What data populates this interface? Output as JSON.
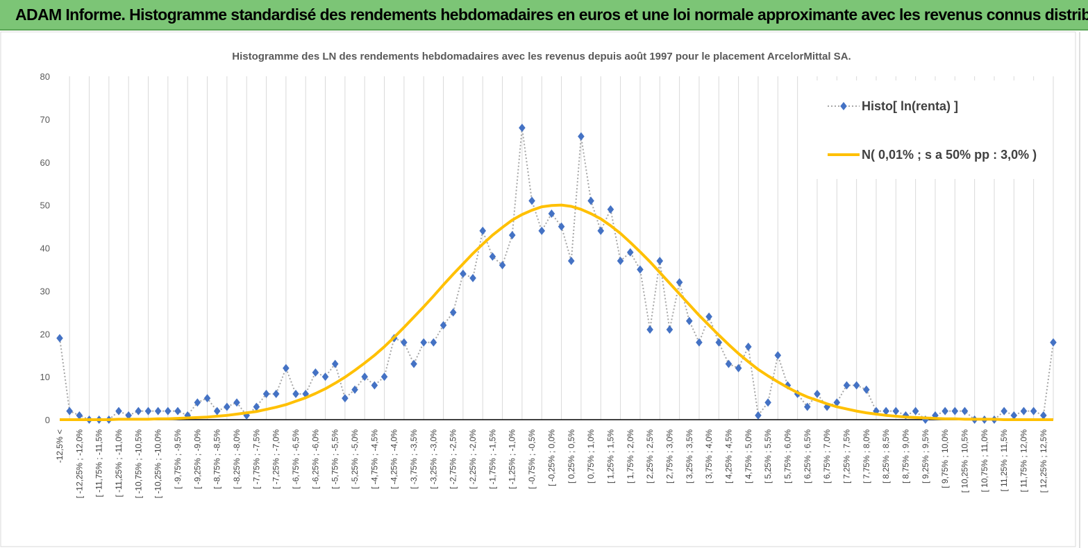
{
  "header": {
    "title": "ADAM Informe. Histogramme standardisé des rendements hebdomadaires en euros et une loi normale approximante avec les revenus connus distribués"
  },
  "chart_data": {
    "type": "line",
    "title": "Histogramme des LN des rendements hebdomadaires avec les revenus depuis août 1997 pour le placement ArcelorMittal SA.",
    "categories": [
      "-12,5% <",
      null,
      "[ -12,25% ; -12,0%",
      null,
      "[ -11,75% ; -11,5%",
      null,
      "[ -11,25% ; -11,0%",
      null,
      "[ -10,75% ; -10,5%",
      null,
      "[ -10,25% ; -10,0%",
      null,
      "[ -9,75% ; -9,5%",
      null,
      "[ -9,25% ; -9,0%",
      null,
      "[ -8,75% ; -8,5%",
      null,
      "[ -8,25% ; -8,0%",
      null,
      "[ -7,75% ; -7,5%",
      null,
      "[ -7,25% ; -7,0%",
      null,
      "[ -6,75% ; -6,5%",
      null,
      "[ -6,25% ; -6,0%",
      null,
      "[ -5,75% ; -5,5%",
      null,
      "[ -5,25% ; -5,0%",
      null,
      "[ -4,75% ; -4,5%",
      null,
      "[ -4,25% ; -4,0%",
      null,
      "[ -3,75% ; -3,5%",
      null,
      "[ -3,25% ; -3,0%",
      null,
      "[ -2,75% ; -2,5%",
      null,
      "[ -2,25% ; -2,0%",
      null,
      "[ -1,75% ; -1,5%",
      null,
      "[ -1,25% ; -1,0%",
      null,
      "[ -0,75% ; -0,5%",
      null,
      "[ -0,25% ; 0,0%",
      null,
      "[ 0,25% ; 0,5%",
      null,
      "[ 0,75% ; 1,0%",
      null,
      "[ 1,25% ; 1,5%",
      null,
      "[ 1,75% ; 2,0%",
      null,
      "[ 2,25% ; 2,5%",
      null,
      "[ 2,75% ; 3,0%",
      null,
      "[ 3,25% ; 3,5%",
      null,
      "[ 3,75% ; 4,0%",
      null,
      "[ 4,25% ; 4,5%",
      null,
      "[ 4,75% ; 5,0%",
      null,
      "[ 5,25% ; 5,5%",
      null,
      "[ 5,75% ; 6,0%",
      null,
      "[ 6,25% ; 6,5%",
      null,
      "[ 6,75% ; 7,0%",
      null,
      "[ 7,25% ; 7,5%",
      null,
      "[ 7,75% ; 8,0%",
      null,
      "[ 8,25% ; 8,5%",
      null,
      "[ 8,75% ; 9,0%",
      null,
      "[ 9,25% ; 9,5%",
      null,
      "[ 9,75% ; 10,0%",
      null,
      "[ 10,25% ; 10,5%",
      null,
      "[ 10,75% ; 11,0%",
      null,
      "[ 11,25% ; 11,5%",
      null,
      "[ 11,75% ; 12,0%",
      null,
      "[ 12,25% ; 12,5%",
      null
    ],
    "series": [
      {
        "name": "Histo[ ln(renta) ]",
        "color": "#4472c4",
        "line_color": "#a6a6a6",
        "line_style": "dotted",
        "marker": "diamond",
        "values": [
          19,
          2,
          1,
          0,
          0,
          0,
          2,
          1,
          2,
          2,
          2,
          2,
          2,
          1,
          4,
          5,
          2,
          3,
          4,
          1,
          3,
          6,
          6,
          12,
          6,
          6,
          11,
          10,
          13,
          5,
          7,
          10,
          8,
          10,
          19,
          18,
          13,
          18,
          18,
          22,
          25,
          34,
          33,
          44,
          38,
          36,
          43,
          68,
          51,
          44,
          48,
          45,
          37,
          66,
          51,
          44,
          49,
          37,
          39,
          35,
          21,
          37,
          21,
          32,
          23,
          18,
          24,
          18,
          13,
          12,
          17,
          1,
          4,
          15,
          8,
          6,
          3,
          6,
          3,
          4,
          8,
          8,
          7,
          2,
          2,
          2,
          1,
          2,
          0,
          1,
          2,
          2,
          2,
          0,
          0,
          0,
          2,
          1,
          2,
          2,
          1,
          18
        ]
      },
      {
        "name": "N( 0,01% ; s a 50% pp : 3,0% )",
        "color": "#ffc000",
        "line_style": "solid",
        "marker": "none",
        "values": [
          0.0,
          0.0,
          0.0,
          0.0,
          0.0,
          0.0,
          0.1,
          0.1,
          0.1,
          0.1,
          0.2,
          0.2,
          0.3,
          0.4,
          0.5,
          0.6,
          0.8,
          1.0,
          1.3,
          1.6,
          1.9,
          2.4,
          2.9,
          3.5,
          4.3,
          5.1,
          6.1,
          7.2,
          8.5,
          9.9,
          11.5,
          13.2,
          15.0,
          17.0,
          19.2,
          21.5,
          23.9,
          26.3,
          28.8,
          31.4,
          33.9,
          36.3,
          38.7,
          40.9,
          43.0,
          44.8,
          46.5,
          47.8,
          48.8,
          49.6,
          49.9,
          50.0,
          49.7,
          49.0,
          48.0,
          46.8,
          45.2,
          43.4,
          41.3,
          39.1,
          36.8,
          34.3,
          31.8,
          29.3,
          26.8,
          24.3,
          22.0,
          19.7,
          17.5,
          15.4,
          13.5,
          11.7,
          10.2,
          8.8,
          7.5,
          6.3,
          5.3,
          4.5,
          3.7,
          3.0,
          2.5,
          2.0,
          1.6,
          1.3,
          1.0,
          0.8,
          0.6,
          0.5,
          0.4,
          0.3,
          0.2,
          0.2,
          0.1,
          0.1,
          0.1,
          0.1,
          0.0,
          0.0,
          0.0,
          0.0,
          0.0,
          0.0
        ]
      }
    ],
    "ylim": [
      0,
      80
    ],
    "yticks": [
      0,
      10,
      20,
      30,
      40,
      50,
      60,
      70,
      80
    ],
    "grid": "x",
    "legend": "upper right"
  }
}
